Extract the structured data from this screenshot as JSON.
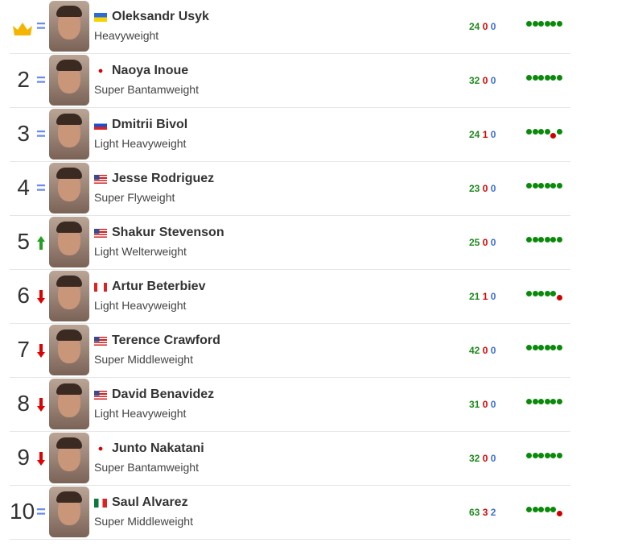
{
  "boxers": [
    {
      "rank": "",
      "crown": true,
      "change": "same",
      "name": "Oleksandr Usyk",
      "flag": "UA",
      "weight_class": "Heavyweight",
      "record": {
        "wins": "24",
        "losses": "0",
        "draws": "0"
      },
      "form": [
        "W",
        "W",
        "W",
        "W",
        "W",
        "W"
      ]
    },
    {
      "rank": "2",
      "change": "same",
      "name": "Naoya Inoue",
      "flag": "JP",
      "weight_class": "Super Bantamweight",
      "record": {
        "wins": "32",
        "losses": "0",
        "draws": "0"
      },
      "form": [
        "W",
        "W",
        "W",
        "W",
        "W",
        "W"
      ]
    },
    {
      "rank": "3",
      "change": "same",
      "name": "Dmitrii Bivol",
      "flag": "RU",
      "weight_class": "Light Heavyweight",
      "record": {
        "wins": "24",
        "losses": "1",
        "draws": "0"
      },
      "form": [
        "W",
        "W",
        "W",
        "W",
        "L",
        "W"
      ]
    },
    {
      "rank": "4",
      "change": "same",
      "name": "Jesse Rodriguez",
      "flag": "US",
      "weight_class": "Super Flyweight",
      "record": {
        "wins": "23",
        "losses": "0",
        "draws": "0"
      },
      "form": [
        "W",
        "W",
        "W",
        "W",
        "W",
        "W"
      ]
    },
    {
      "rank": "5",
      "change": "up",
      "name": "Shakur Stevenson",
      "flag": "US",
      "weight_class": "Light Welterweight",
      "record": {
        "wins": "25",
        "losses": "0",
        "draws": "0"
      },
      "form": [
        "W",
        "W",
        "W",
        "W",
        "W",
        "W"
      ]
    },
    {
      "rank": "6",
      "change": "down",
      "name": "Artur Beterbiev",
      "flag": "CA",
      "weight_class": "Light Heavyweight",
      "record": {
        "wins": "21",
        "losses": "1",
        "draws": "0"
      },
      "form": [
        "W",
        "W",
        "W",
        "W",
        "W",
        "L"
      ]
    },
    {
      "rank": "7",
      "change": "down",
      "name": "Terence Crawford",
      "flag": "US",
      "weight_class": "Super Middleweight",
      "record": {
        "wins": "42",
        "losses": "0",
        "draws": "0"
      },
      "form": [
        "W",
        "W",
        "W",
        "W",
        "W",
        "W"
      ]
    },
    {
      "rank": "8",
      "change": "down",
      "name": "David Benavidez",
      "flag": "US",
      "weight_class": "Light Heavyweight",
      "record": {
        "wins": "31",
        "losses": "0",
        "draws": "0"
      },
      "form": [
        "W",
        "W",
        "W",
        "W",
        "W",
        "W"
      ]
    },
    {
      "rank": "9",
      "change": "down",
      "name": "Junto Nakatani",
      "flag": "JP",
      "weight_class": "Super Bantamweight",
      "record": {
        "wins": "32",
        "losses": "0",
        "draws": "0"
      },
      "form": [
        "W",
        "W",
        "W",
        "W",
        "W",
        "W"
      ]
    },
    {
      "rank": "10",
      "change": "same",
      "name": "Saul Alvarez",
      "flag": "MX",
      "weight_class": "Super Middleweight",
      "record": {
        "wins": "63",
        "losses": "3",
        "draws": "2"
      },
      "form": [
        "W",
        "W",
        "W",
        "W",
        "W",
        "L"
      ]
    }
  ],
  "colors": {
    "win": "#0a8a0a",
    "loss": "#d00000",
    "draw": "#3a6fd8",
    "same": "#6b8cf0",
    "up": "#22a022",
    "down": "#e00000",
    "crown": "#f5b400"
  }
}
